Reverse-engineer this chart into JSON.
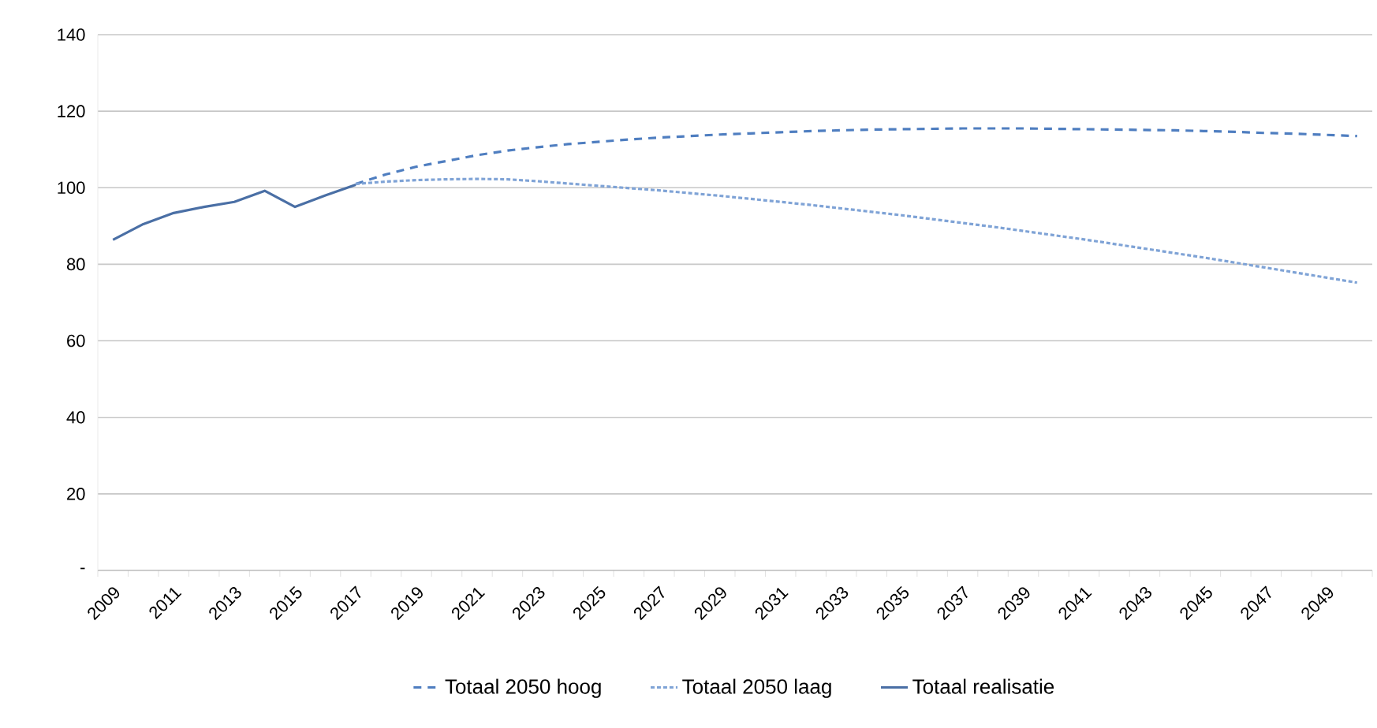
{
  "chart_data": {
    "type": "line",
    "categories": [
      "2009",
      null,
      "2011",
      null,
      "2013",
      null,
      "2015",
      null,
      "2017",
      null,
      "2019",
      null,
      "2021",
      null,
      "2023",
      null,
      "2025",
      null,
      "2027",
      null,
      "2029",
      null,
      "2031",
      null,
      "2033",
      null,
      "2035",
      null,
      "2037",
      null,
      "2039",
      null,
      "2041",
      null,
      "2043",
      null,
      "2045",
      null,
      "2047",
      null,
      "2049",
      null
    ],
    "series": [
      {
        "name": "Totaal 2050 hoog",
        "color": "#4f7ec0",
        "line_style": "dashed",
        "values": [
          null,
          null,
          null,
          null,
          null,
          null,
          null,
          null,
          101,
          103.5,
          105.5,
          107,
          108.5,
          109.7,
          110.6,
          111.4,
          112,
          112.6,
          113.1,
          113.5,
          113.9,
          114.2,
          114.5,
          114.8,
          115,
          115.2,
          115.3,
          115.4,
          115.5,
          115.5,
          115.5,
          115.4,
          115.3,
          115.2,
          115.1,
          115,
          114.8,
          114.6,
          114.3,
          114.1,
          113.8,
          113.5
        ]
      },
      {
        "name": "Totaal 2050 laag",
        "color": "#7fa3d6",
        "line_style": "dotted",
        "values": [
          null,
          null,
          null,
          null,
          null,
          null,
          null,
          null,
          101,
          101.6,
          102,
          102.2,
          102.3,
          102.2,
          101.7,
          101.1,
          100.5,
          99.9,
          99.3,
          98.6,
          97.9,
          97.1,
          96.3,
          95.5,
          94.6,
          93.7,
          92.8,
          91.8,
          90.8,
          89.8,
          88.7,
          87.6,
          86.5,
          85.3,
          84.1,
          82.9,
          81.7,
          80.4,
          79.1,
          77.8,
          76.5,
          75.2
        ]
      },
      {
        "name": "Totaal realisatie",
        "color": "#4a6fa5",
        "line_style": "solid",
        "values": [
          86.4,
          90.5,
          93.4,
          95,
          96.3,
          99.2,
          95,
          98,
          100.8,
          null,
          null,
          null,
          null,
          null,
          null,
          null,
          null,
          null,
          null,
          null,
          null,
          null,
          null,
          null,
          null,
          null,
          null,
          null,
          null,
          null,
          null,
          null,
          null,
          null,
          null,
          null,
          null,
          null,
          null,
          null,
          null,
          null
        ]
      }
    ],
    "ylim": [
      0,
      140
    ],
    "yticks": [
      {
        "value": 0,
        "label": "-"
      },
      20,
      40,
      60,
      80,
      100,
      120,
      140
    ],
    "grid": "y",
    "legend": "bottom",
    "marker": "none"
  }
}
